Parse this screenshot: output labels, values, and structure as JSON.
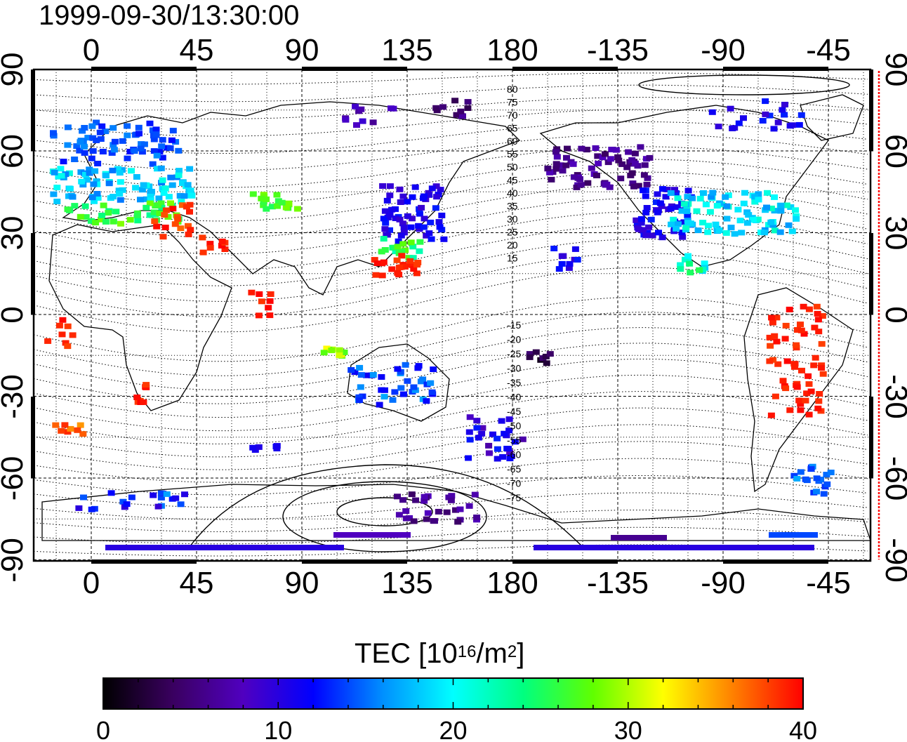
{
  "title": "1999-09-30/13:30:00",
  "map": {
    "top_lon_labels": [
      "0",
      "45",
      "90",
      "135",
      "180",
      "-135",
      "-90",
      "-45"
    ],
    "bottom_lon_labels": [
      "0",
      "45",
      "90",
      "135",
      "180",
      "-135",
      "-90",
      "-45"
    ],
    "left_lat_labels": [
      "90",
      "60",
      "30",
      "0",
      "-30",
      "-60",
      "-90"
    ],
    "right_lat_labels": [
      "90",
      "60",
      "30",
      "0",
      "-30",
      "-60",
      "-90"
    ],
    "contour_labels_north": [
      "80",
      "75",
      "70",
      "65",
      "60",
      "55",
      "50",
      "45",
      "40",
      "35",
      "30",
      "25",
      "20",
      "15"
    ],
    "contour_labels_south": [
      "-15",
      "-20",
      "-25",
      "-30",
      "-35",
      "-40",
      "-45",
      "-50",
      "-55",
      "-60",
      "-65",
      "-70",
      "-75"
    ]
  },
  "colorbar": {
    "label_main": "TEC  [10",
    "label_exp1": "16",
    "label_mid": "/m",
    "label_exp2": "2",
    "label_end": "]",
    "tick_labels": [
      "0",
      "10",
      "20",
      "30",
      "40"
    ],
    "min": 0,
    "max": 40,
    "colors": [
      "#000000",
      "#3a0060",
      "#5000c0",
      "#0000ff",
      "#0090ff",
      "#00ffff",
      "#00ff80",
      "#60ff00",
      "#ffff00",
      "#ff8000",
      "#ff0000"
    ]
  },
  "colors": {
    "frame": "#000000",
    "right_edge_marker": "#ff0000"
  }
}
